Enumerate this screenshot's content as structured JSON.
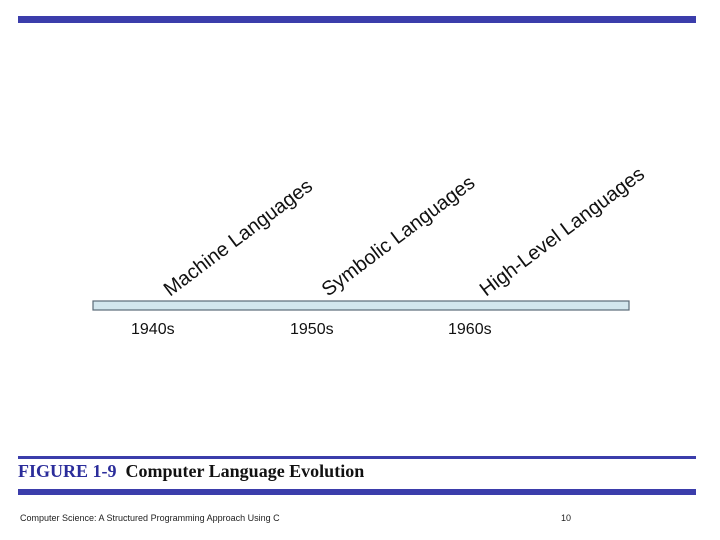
{
  "diagram": {
    "languages": [
      "Machine Languages",
      "Symbolic Languages",
      "High-Level Languages"
    ],
    "decades": [
      "1940s",
      "1950s",
      "1960s"
    ]
  },
  "caption": {
    "figure_number": "FIGURE 1-9",
    "title": "Computer Language Evolution"
  },
  "footer": {
    "book_title": "Computer Science: A Structured Programming Approach Using C",
    "page_number": "10"
  },
  "colors": {
    "accent_bar": "#3b3dab",
    "timeline_fill": "#d2e6ee",
    "timeline_stroke": "#5a6a78"
  }
}
